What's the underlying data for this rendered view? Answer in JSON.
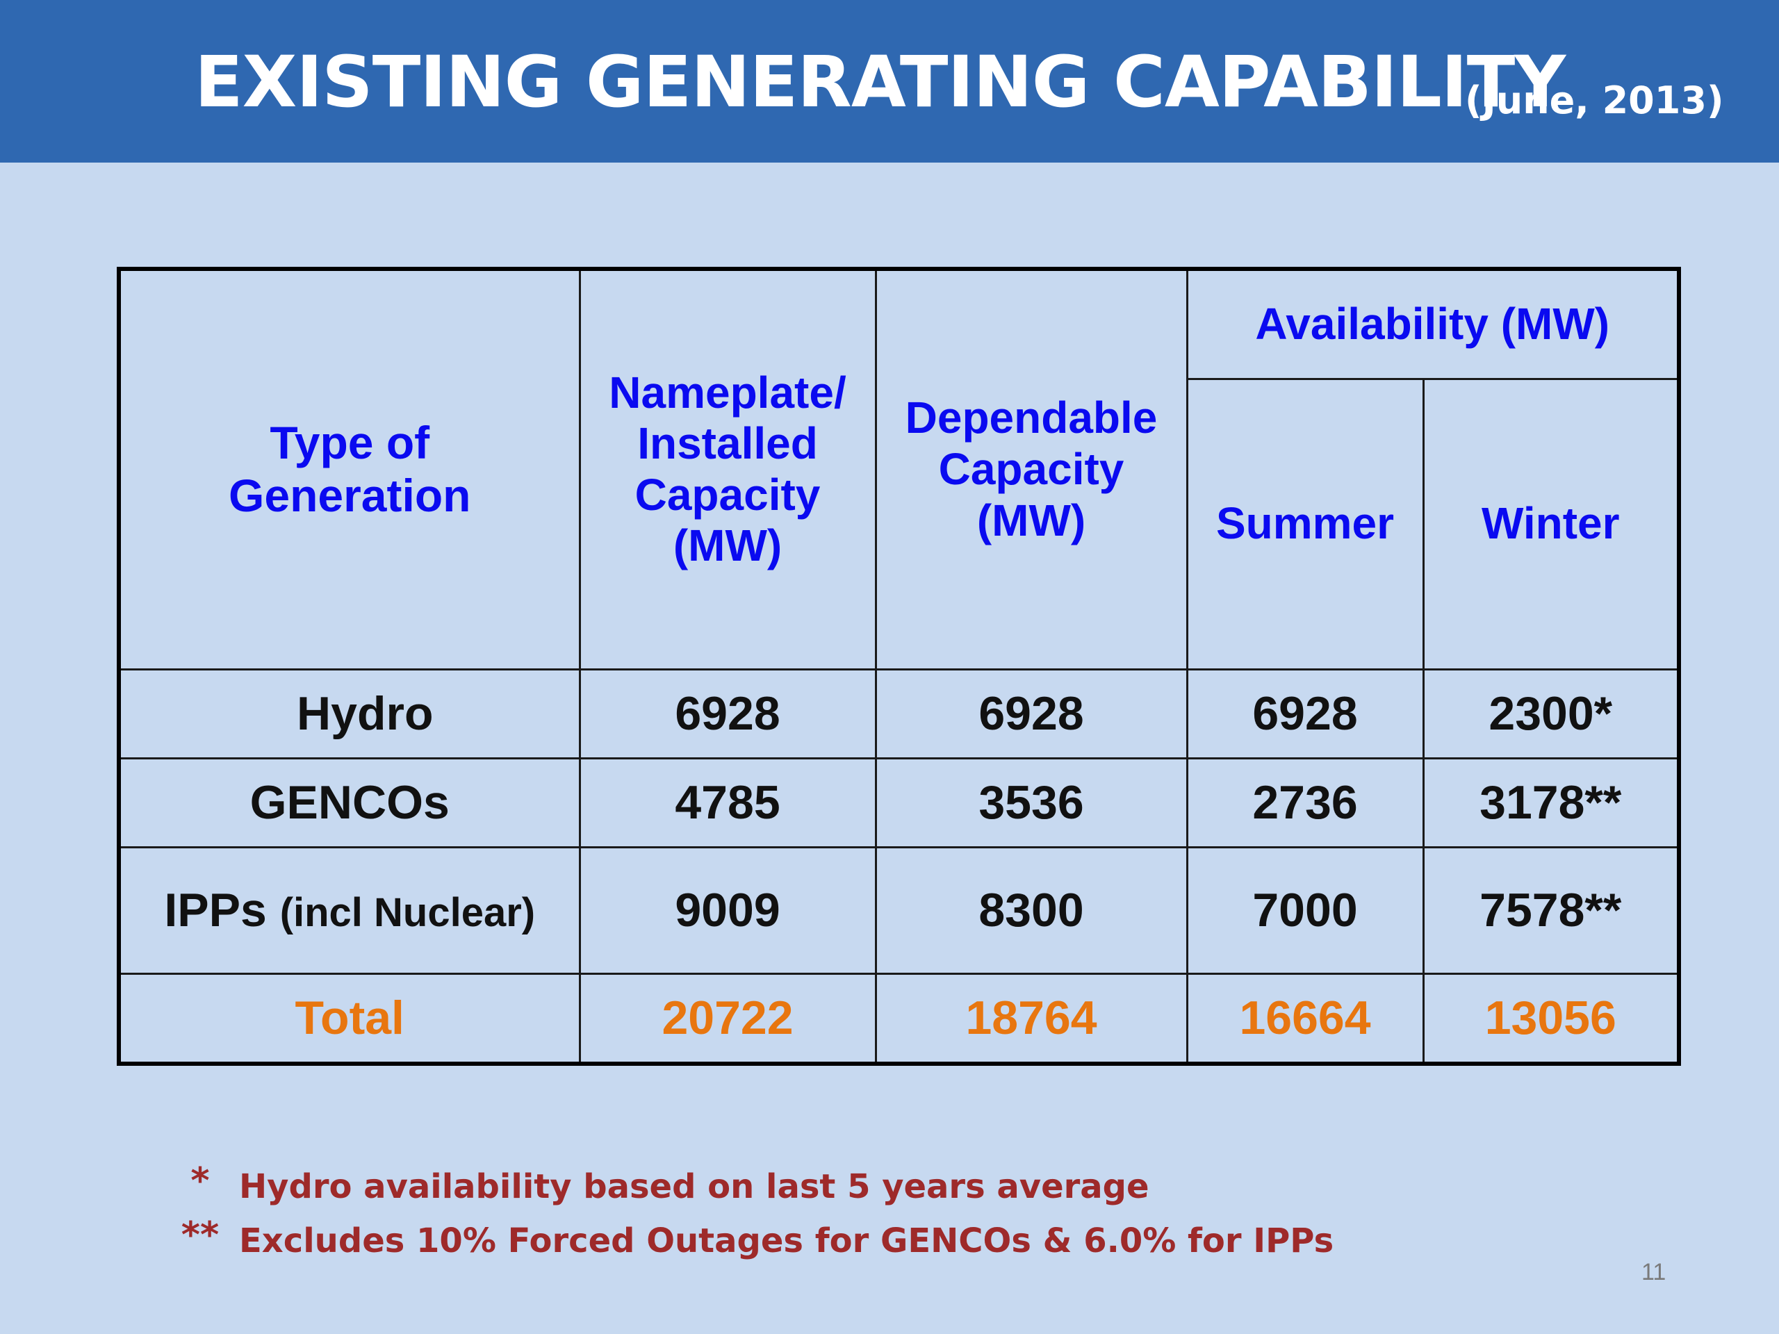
{
  "slide": {
    "title": "EXISTING GENERATING CAPABILITY",
    "date": "(June,  2013)",
    "page_number": "11"
  },
  "table": {
    "headers": {
      "type": "Type of Generation",
      "nameplate": "Nameplate/ Installed Capacity (MW)",
      "dependable": "Dependable Capacity (MW)",
      "availability": "Availability (MW)",
      "summer": "Summer",
      "winter": "Winter"
    },
    "rows": [
      {
        "label": "Hydro",
        "label_extra": "",
        "nameplate": "6928",
        "dependable": "6928",
        "summer": "6928",
        "winter": "2300*"
      },
      {
        "label": "GENCOs",
        "label_extra": "",
        "nameplate": "4785",
        "dependable": "3536",
        "summer": "2736",
        "winter": "3178**"
      },
      {
        "label": "IPPs",
        "label_extra": "(incl Nuclear)",
        "nameplate": "9009",
        "dependable": "8300",
        "summer": "7000",
        "winter": "7578**"
      }
    ],
    "total": {
      "label": "Total",
      "nameplate": "20722",
      "dependable": "18764",
      "summer": "16664",
      "winter": "13056"
    },
    "colors": {
      "header_text": "#0a0af0",
      "total_text": "#e8760f",
      "body_text": "#111111"
    }
  },
  "footnotes": [
    {
      "mark": "*",
      "text": "Hydro  availability based on last 5 years average"
    },
    {
      "mark": "**",
      "text": "Excludes 10% Forced Outages for GENCOs & 6.0% for IPPs"
    }
  ],
  "colors": {
    "title_bar": "#2f68b1",
    "background": "#c7d9f0",
    "footnote_text": "#9e2a2a"
  }
}
